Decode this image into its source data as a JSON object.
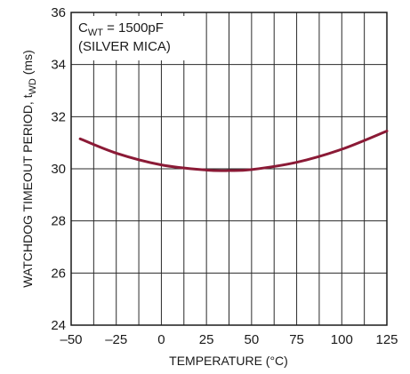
{
  "chart_data": {
    "type": "line",
    "xlabel": "TEMPERATURE (°C)",
    "ylabel_parts": {
      "prefix": "WATCHDOG TIMEOUT PERIOD, t",
      "subscript": "WD",
      "suffix": " (ms)"
    },
    "xlim": [
      -50,
      125
    ],
    "ylim": [
      24,
      36
    ],
    "x_ticks": [
      -50,
      -25,
      0,
      25,
      50,
      75,
      100,
      125
    ],
    "x_tick_labels": [
      "–50",
      "–25",
      "0",
      "25",
      "50",
      "75",
      "100",
      "125"
    ],
    "y_ticks": [
      24,
      26,
      28,
      30,
      32,
      34,
      36
    ],
    "y_tick_labels": [
      "24",
      "26",
      "28",
      "30",
      "32",
      "34",
      "36"
    ],
    "x_grid_step": 12.5,
    "y_grid_step": 2,
    "grid": true,
    "annotation": {
      "line1_prefix": "C",
      "line1_subscript": "WT",
      "line1_suffix": " = 1500pF",
      "line2": "(SILVER MICA)"
    },
    "series": [
      {
        "color": "#8b1a36",
        "x": [
          -45,
          -25,
          0,
          25,
          37.5,
          50,
          75,
          100,
          125
        ],
        "y": [
          31.15,
          30.6,
          30.15,
          29.95,
          29.93,
          29.97,
          30.25,
          30.75,
          31.45
        ]
      }
    ]
  }
}
